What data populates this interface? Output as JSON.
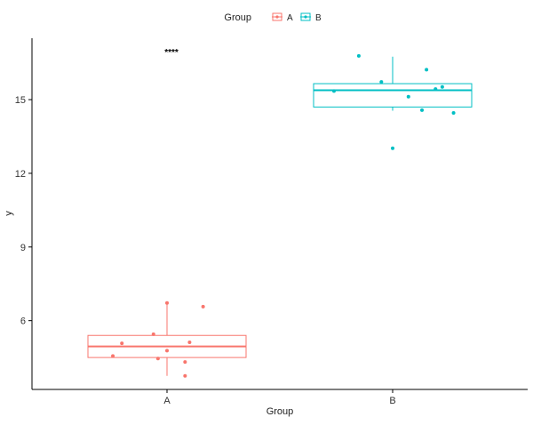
{
  "chart_data": {
    "type": "boxplot",
    "title": "",
    "xlabel": "Group",
    "ylabel": "y",
    "ylim": [
      3.2,
      17.5
    ],
    "yticks": [
      6,
      9,
      12,
      15
    ],
    "categories": [
      "A",
      "B"
    ],
    "legend": {
      "title": "Group",
      "placement": "top",
      "entries": [
        "A",
        "B"
      ]
    },
    "colors": {
      "A": "#F8766D",
      "B": "#00BFC4"
    },
    "annotation": {
      "text": "****",
      "x_category": "A",
      "y": 16.95
    },
    "groups": [
      {
        "name": "A",
        "q1": 4.5,
        "median": 4.95,
        "q3": 5.4,
        "whisker_low": 3.75,
        "whisker_high": 6.75,
        "points": [
          {
            "dx": 0.0,
            "y": 6.72
          },
          {
            "dx": 0.16,
            "y": 6.57
          },
          {
            "dx": -0.06,
            "y": 5.45
          },
          {
            "dx": 0.1,
            "y": 5.12
          },
          {
            "dx": -0.2,
            "y": 5.08
          },
          {
            "dx": 0.0,
            "y": 4.78
          },
          {
            "dx": -0.24,
            "y": 4.56
          },
          {
            "dx": -0.04,
            "y": 4.46
          },
          {
            "dx": 0.08,
            "y": 4.32
          },
          {
            "dx": 0.08,
            "y": 3.75
          }
        ]
      },
      {
        "name": "B",
        "q1": 14.7,
        "median": 15.38,
        "q3": 15.65,
        "whisker_low": 14.55,
        "whisker_high": 16.75,
        "points": [
          {
            "dx": -0.15,
            "y": 16.78
          },
          {
            "dx": 0.15,
            "y": 16.22
          },
          {
            "dx": -0.05,
            "y": 15.72
          },
          {
            "dx": 0.22,
            "y": 15.52
          },
          {
            "dx": 0.19,
            "y": 15.43
          },
          {
            "dx": -0.26,
            "y": 15.35
          },
          {
            "dx": 0.07,
            "y": 15.12
          },
          {
            "dx": 0.13,
            "y": 14.57
          },
          {
            "dx": 0.27,
            "y": 14.46
          },
          {
            "dx": 0.0,
            "y": 13.02
          }
        ]
      }
    ]
  }
}
